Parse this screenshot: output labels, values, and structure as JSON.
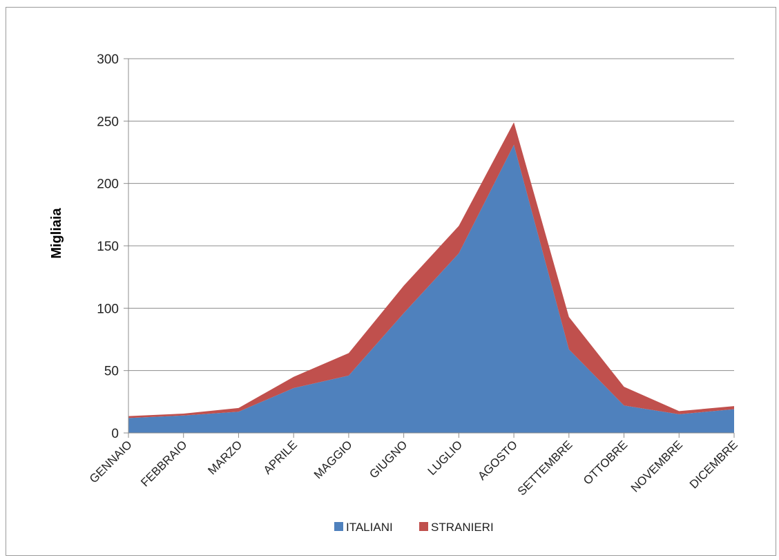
{
  "chart_data": {
    "type": "area",
    "stacked": true,
    "title": "",
    "xlabel": "",
    "ylabel": "Migliaia",
    "ylim": [
      0,
      300
    ],
    "yticks": [
      0,
      50,
      100,
      150,
      200,
      250,
      300
    ],
    "grid": true,
    "legend_position": "bottom",
    "categories": [
      "GENNAIO",
      "FEBBRAIO",
      "MARZO",
      "APRILE",
      "MAGGIO",
      "GIUGNO",
      "LUGLIO",
      "AGOSTO",
      "SETTEMBRE",
      "OTTOBRE",
      "NOVEMBRE",
      "DICEMBRE"
    ],
    "series": [
      {
        "name": "ITALIANI",
        "color": "#4f81bd",
        "values": [
          12,
          14,
          17,
          36,
          46,
          96,
          144,
          231,
          67,
          22,
          15,
          19
        ]
      },
      {
        "name": "STRANIERI",
        "color": "#c0504d",
        "values": [
          1.5,
          1.5,
          3,
          9,
          18,
          22,
          22,
          18,
          26,
          15,
          2.5,
          2.5
        ]
      }
    ]
  }
}
